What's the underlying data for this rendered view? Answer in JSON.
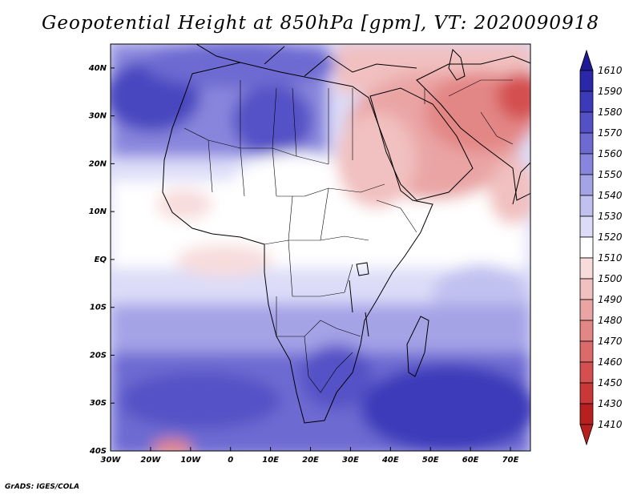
{
  "title": "Geopotential Height at 850hPa [gpm], VT: 2020090918",
  "credit": "GrADS: IGES/COLA",
  "map": {
    "lon_range": [
      -30,
      75
    ],
    "lat_range": [
      -40,
      45
    ],
    "x_ticks": [
      {
        "label": "30W",
        "lon": -30
      },
      {
        "label": "20W",
        "lon": -20
      },
      {
        "label": "10W",
        "lon": -10
      },
      {
        "label": "0",
        "lon": 0
      },
      {
        "label": "10E",
        "lon": 10
      },
      {
        "label": "20E",
        "lon": 20
      },
      {
        "label": "30E",
        "lon": 30
      },
      {
        "label": "40E",
        "lon": 40
      },
      {
        "label": "50E",
        "lon": 50
      },
      {
        "label": "60E",
        "lon": 60
      },
      {
        "label": "70E",
        "lon": 70
      }
    ],
    "y_ticks": [
      {
        "label": "40N",
        "lat": 40
      },
      {
        "label": "30N",
        "lat": 30
      },
      {
        "label": "20N",
        "lat": 20
      },
      {
        "label": "10N",
        "lat": 10
      },
      {
        "label": "EQ",
        "lat": 0
      },
      {
        "label": "10S",
        "lat": -10
      },
      {
        "label": "20S",
        "lat": -20
      },
      {
        "label": "30S",
        "lat": -30
      },
      {
        "label": "40S",
        "lat": -40
      }
    ]
  },
  "colorbar": {
    "levels": [
      {
        "label": "1610",
        "color": "#1e1a96"
      },
      {
        "label": "1590",
        "color": "#2a28a8"
      },
      {
        "label": "1580",
        "color": "#3d3ab9"
      },
      {
        "label": "1570",
        "color": "#5451c6"
      },
      {
        "label": "1560",
        "color": "#6d6bd1"
      },
      {
        "label": "1550",
        "color": "#8886dc"
      },
      {
        "label": "1540",
        "color": "#a4a3e6"
      },
      {
        "label": "1530",
        "color": "#c1c1f0"
      },
      {
        "label": "1520",
        "color": "#dcdcf8"
      },
      {
        "label": "1510",
        "color": "#ffffff"
      },
      {
        "label": "1500",
        "color": "#f8dcdc"
      },
      {
        "label": "1490",
        "color": "#f1c0c0"
      },
      {
        "label": "1480",
        "color": "#eaa4a4"
      },
      {
        "label": "1470",
        "color": "#e38686"
      },
      {
        "label": "1460",
        "color": "#dc6a6a"
      },
      {
        "label": "1450",
        "color": "#d44f4f"
      },
      {
        "label": "1430",
        "color": "#c93737"
      },
      {
        "label": "1410",
        "color": "#b82020"
      }
    ]
  }
}
